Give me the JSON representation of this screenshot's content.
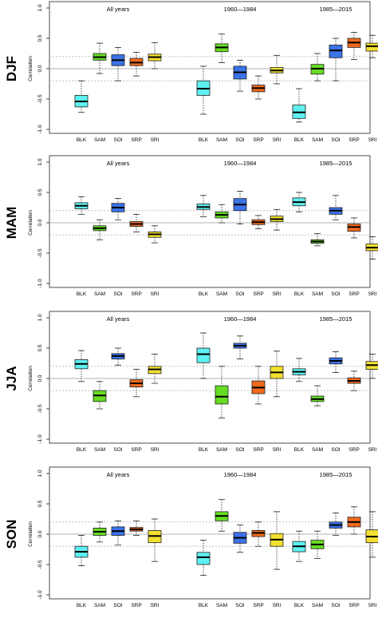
{
  "colors": {
    "BLK": "#5ff0f0",
    "SAM": "#66dd22",
    "SOI": "#3a72e8",
    "SRP": "#f06a1e",
    "SRI": "#f2e030"
  },
  "chart_data": [
    {
      "type": "boxplot",
      "season": "DJF",
      "ylabel": "Correlation",
      "ylim": [
        -1,
        1
      ],
      "yticks": [
        "-1.0",
        "-0.5",
        "0.0",
        "0.5",
        "1.0"
      ],
      "reference_lines": [
        0.2,
        0,
        -0.2
      ],
      "periods": [
        {
          "label": "All years",
          "boxes": [
            {
              "name": "BLK",
              "min": -0.72,
              "q1": -0.63,
              "median": -0.54,
              "q3": -0.44,
              "max": -0.2
            },
            {
              "name": "SAM",
              "min": -0.08,
              "q1": 0.14,
              "median": 0.19,
              "q3": 0.25,
              "max": 0.42
            },
            {
              "name": "SOI",
              "min": -0.2,
              "q1": 0.05,
              "median": 0.14,
              "q3": 0.23,
              "max": 0.35
            },
            {
              "name": "SRP",
              "min": -0.12,
              "q1": 0.05,
              "median": 0.1,
              "q3": 0.17,
              "max": 0.27
            },
            {
              "name": "SRI",
              "min": 0.0,
              "q1": 0.13,
              "median": 0.19,
              "q3": 0.24,
              "max": 0.43
            }
          ]
        },
        {
          "label": "1960—1984",
          "boxes": [
            {
              "name": "BLK",
              "min": -0.75,
              "q1": -0.44,
              "median": -0.33,
              "q3": -0.2,
              "max": 0.04
            },
            {
              "name": "SAM",
              "min": 0.1,
              "q1": 0.28,
              "median": 0.35,
              "q3": 0.41,
              "max": 0.57
            },
            {
              "name": "SOI",
              "min": -0.37,
              "q1": -0.17,
              "median": -0.06,
              "q3": 0.04,
              "max": 0.14
            },
            {
              "name": "SRP",
              "min": -0.5,
              "q1": -0.38,
              "median": -0.32,
              "q3": -0.27,
              "max": -0.12
            },
            {
              "name": "SRI",
              "min": -0.25,
              "q1": -0.07,
              "median": -0.03,
              "q3": 0.02,
              "max": 0.22
            }
          ]
        },
        {
          "label": "1985—2015",
          "boxes": [
            {
              "name": "BLK",
              "min": -0.88,
              "q1": -0.82,
              "median": -0.72,
              "q3": -0.6,
              "max": -0.33
            },
            {
              "name": "SAM",
              "min": -0.2,
              "q1": -0.09,
              "median": 0.0,
              "q3": 0.07,
              "max": 0.25
            },
            {
              "name": "SOI",
              "min": -0.2,
              "q1": 0.18,
              "median": 0.3,
              "q3": 0.39,
              "max": 0.5
            },
            {
              "name": "SRP",
              "min": 0.15,
              "q1": 0.35,
              "median": 0.43,
              "q3": 0.5,
              "max": 0.6
            },
            {
              "name": "SRI",
              "min": 0.18,
              "q1": 0.29,
              "median": 0.37,
              "q3": 0.42,
              "max": 0.55
            }
          ]
        }
      ]
    },
    {
      "type": "boxplot",
      "season": "MAM",
      "ylabel": "Correlation",
      "ylim": [
        -1,
        1
      ],
      "yticks": [
        "-1.0",
        "-0.5",
        "0.0",
        "0.5",
        "1.0"
      ],
      "reference_lines": [
        0.2,
        0,
        -0.2
      ],
      "periods": [
        {
          "label": "All years",
          "boxes": [
            {
              "name": "BLK",
              "min": 0.14,
              "q1": 0.23,
              "median": 0.28,
              "q3": 0.33,
              "max": 0.43
            },
            {
              "name": "SAM",
              "min": -0.28,
              "q1": -0.13,
              "median": -0.09,
              "q3": -0.05,
              "max": 0.05
            },
            {
              "name": "SOI",
              "min": 0.05,
              "q1": 0.18,
              "median": 0.25,
              "q3": 0.32,
              "max": 0.4
            },
            {
              "name": "SRP",
              "min": -0.15,
              "q1": -0.06,
              "median": -0.02,
              "q3": 0.02,
              "max": 0.14
            },
            {
              "name": "SRI",
              "min": -0.33,
              "q1": -0.24,
              "median": -0.19,
              "q3": -0.15,
              "max": -0.05
            }
          ]
        },
        {
          "label": "1960—1984",
          "boxes": [
            {
              "name": "BLK",
              "min": 0.1,
              "q1": 0.22,
              "median": 0.26,
              "q3": 0.31,
              "max": 0.45
            },
            {
              "name": "SAM",
              "min": 0.0,
              "q1": 0.08,
              "median": 0.13,
              "q3": 0.18,
              "max": 0.3
            },
            {
              "name": "SOI",
              "min": -0.02,
              "q1": 0.2,
              "median": 0.3,
              "q3": 0.4,
              "max": 0.52
            },
            {
              "name": "SRP",
              "min": -0.1,
              "q1": -0.03,
              "median": 0.01,
              "q3": 0.05,
              "max": 0.12
            },
            {
              "name": "SRI",
              "min": -0.12,
              "q1": 0.02,
              "median": 0.06,
              "q3": 0.11,
              "max": 0.22
            }
          ]
        },
        {
          "label": "1985—2015",
          "boxes": [
            {
              "name": "BLK",
              "min": 0.18,
              "q1": 0.28,
              "median": 0.34,
              "q3": 0.41,
              "max": 0.5
            },
            {
              "name": "SAM",
              "min": -0.38,
              "q1": -0.34,
              "median": -0.31,
              "q3": -0.28,
              "max": -0.18
            },
            {
              "name": "SOI",
              "min": 0.05,
              "q1": 0.14,
              "median": 0.2,
              "q3": 0.25,
              "max": 0.45
            },
            {
              "name": "SRP",
              "min": -0.25,
              "q1": -0.14,
              "median": -0.07,
              "q3": -0.02,
              "max": 0.08
            },
            {
              "name": "SRI",
              "min": -0.6,
              "q1": -0.46,
              "median": -0.41,
              "q3": -0.35,
              "max": -0.23
            }
          ]
        }
      ]
    },
    {
      "type": "boxplot",
      "season": "JJA",
      "ylabel": "Correlation",
      "ylim": [
        -1,
        1
      ],
      "yticks": [
        "-1.0",
        "-0.5",
        "0.0",
        "0.5",
        "1.0"
      ],
      "reference_lines": [
        0.2,
        0,
        -0.2
      ],
      "periods": [
        {
          "label": "All years",
          "boxes": [
            {
              "name": "BLK",
              "min": -0.05,
              "q1": 0.16,
              "median": 0.24,
              "q3": 0.31,
              "max": 0.46
            },
            {
              "name": "SAM",
              "min": -0.5,
              "q1": -0.38,
              "median": -0.28,
              "q3": -0.2,
              "max": -0.05
            },
            {
              "name": "SOI",
              "min": 0.22,
              "q1": 0.32,
              "median": 0.37,
              "q3": 0.41,
              "max": 0.5
            },
            {
              "name": "SRP",
              "min": -0.3,
              "q1": -0.14,
              "median": -0.08,
              "q3": -0.02,
              "max": 0.15
            },
            {
              "name": "SRI",
              "min": -0.08,
              "q1": 0.08,
              "median": 0.15,
              "q3": 0.2,
              "max": 0.4
            }
          ]
        },
        {
          "label": "1960—1984",
          "boxes": [
            {
              "name": "BLK",
              "min": 0.0,
              "q1": 0.26,
              "median": 0.4,
              "q3": 0.5,
              "max": 0.75
            },
            {
              "name": "SAM",
              "min": -0.65,
              "q1": -0.42,
              "median": -0.3,
              "q3": -0.12,
              "max": 0.2
            },
            {
              "name": "SOI",
              "min": 0.32,
              "q1": 0.5,
              "median": 0.54,
              "q3": 0.58,
              "max": 0.7
            },
            {
              "name": "SRP",
              "min": -0.42,
              "q1": -0.25,
              "median": -0.15,
              "q3": -0.04,
              "max": 0.2
            },
            {
              "name": "SRI",
              "min": -0.3,
              "q1": 0.0,
              "median": 0.1,
              "q3": 0.2,
              "max": 0.45
            }
          ]
        },
        {
          "label": "1985—2015",
          "boxes": [
            {
              "name": "BLK",
              "min": -0.05,
              "q1": 0.06,
              "median": 0.11,
              "q3": 0.16,
              "max": 0.33
            },
            {
              "name": "SAM",
              "min": -0.45,
              "q1": -0.38,
              "median": -0.34,
              "q3": -0.29,
              "max": -0.12
            },
            {
              "name": "SOI",
              "min": 0.1,
              "q1": 0.24,
              "median": 0.29,
              "q3": 0.34,
              "max": 0.44
            },
            {
              "name": "SRP",
              "min": -0.2,
              "q1": -0.08,
              "median": -0.04,
              "q3": 0.01,
              "max": 0.12
            },
            {
              "name": "SRI",
              "min": 0.0,
              "q1": 0.15,
              "median": 0.22,
              "q3": 0.28,
              "max": 0.4
            }
          ]
        }
      ]
    },
    {
      "type": "boxplot",
      "season": "SON",
      "ylabel": "Correlation",
      "ylim": [
        -1,
        1
      ],
      "yticks": [
        "-1.0",
        "-0.5",
        "0.0",
        "0.5",
        "1.0"
      ],
      "reference_lines": [
        0.2,
        0,
        -0.2
      ],
      "periods": [
        {
          "label": "All years",
          "boxes": [
            {
              "name": "BLK",
              "min": -0.52,
              "q1": -0.38,
              "median": -0.29,
              "q3": -0.2,
              "max": -0.02
            },
            {
              "name": "SAM",
              "min": -0.13,
              "q1": -0.02,
              "median": 0.04,
              "q3": 0.1,
              "max": 0.2
            },
            {
              "name": "SOI",
              "min": -0.18,
              "q1": -0.02,
              "median": 0.05,
              "q3": 0.12,
              "max": 0.22
            },
            {
              "name": "SRP",
              "min": -0.02,
              "q1": 0.05,
              "median": 0.08,
              "q3": 0.11,
              "max": 0.22
            },
            {
              "name": "SRI",
              "min": -0.45,
              "q1": -0.14,
              "median": -0.03,
              "q3": 0.06,
              "max": 0.25
            }
          ]
        },
        {
          "label": "1960—1984",
          "boxes": [
            {
              "name": "BLK",
              "min": -0.68,
              "q1": -0.5,
              "median": -0.38,
              "q3": -0.3,
              "max": -0.1
            },
            {
              "name": "SAM",
              "min": 0.05,
              "q1": 0.22,
              "median": 0.3,
              "q3": 0.37,
              "max": 0.57
            },
            {
              "name": "SOI",
              "min": -0.3,
              "q1": -0.15,
              "median": -0.06,
              "q3": 0.03,
              "max": 0.15
            },
            {
              "name": "SRP",
              "min": -0.2,
              "q1": -0.04,
              "median": 0.02,
              "q3": 0.06,
              "max": 0.2
            },
            {
              "name": "SRI",
              "min": -0.58,
              "q1": -0.2,
              "median": -0.09,
              "q3": 0.01,
              "max": 0.37
            }
          ]
        },
        {
          "label": "1985—2015",
          "boxes": [
            {
              "name": "BLK",
              "min": -0.45,
              "q1": -0.29,
              "median": -0.2,
              "q3": -0.12,
              "max": 0.05
            },
            {
              "name": "SAM",
              "min": -0.4,
              "q1": -0.24,
              "median": -0.17,
              "q3": -0.1,
              "max": 0.05
            },
            {
              "name": "SOI",
              "min": -0.02,
              "q1": 0.1,
              "median": 0.15,
              "q3": 0.2,
              "max": 0.35
            },
            {
              "name": "SRP",
              "min": 0.0,
              "q1": 0.12,
              "median": 0.2,
              "q3": 0.28,
              "max": 0.45
            },
            {
              "name": "SRI",
              "min": -0.38,
              "q1": -0.14,
              "median": -0.04,
              "q3": 0.07,
              "max": 0.37
            }
          ]
        }
      ]
    }
  ]
}
